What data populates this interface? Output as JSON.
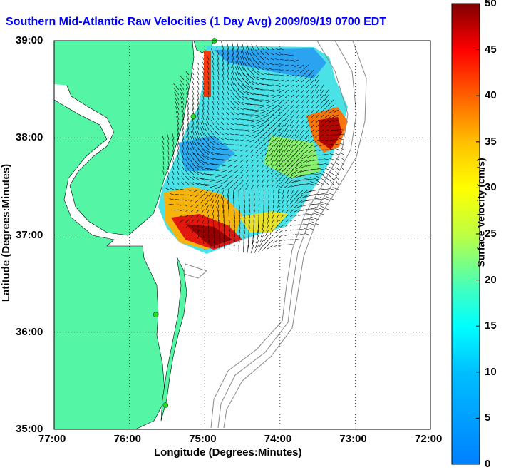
{
  "title": "Southern Mid-Atlantic Raw Velocities (1 Day Avg) 2009/09/19 0700 EDT",
  "x_axis": {
    "label": "Longitude (Degrees:Minutes)",
    "ticks": [
      "77:00",
      "76:00",
      "75:00",
      "74:00",
      "73:00",
      "72:00"
    ]
  },
  "y_axis": {
    "label": "Latitude (Degrees:Minutes)",
    "ticks": [
      "39:00",
      "38:00",
      "37:00",
      "36:00",
      "35:00"
    ]
  },
  "colorbar": {
    "label": "Surface Velocity (cm/s)",
    "ticks": [
      "50",
      "45",
      "40",
      "35",
      "30",
      "25",
      "20",
      "15",
      "10",
      "5",
      "0"
    ]
  },
  "colors": {
    "land": "#55f5a6",
    "title": "#0000ff",
    "station": "#22dd22"
  },
  "stations": [
    {
      "lon": -74.87,
      "lat": 39.0
    },
    {
      "lon": -75.15,
      "lat": 38.22
    },
    {
      "lon": -75.65,
      "lat": 36.18
    },
    {
      "lon": -75.52,
      "lat": 35.25
    }
  ]
}
